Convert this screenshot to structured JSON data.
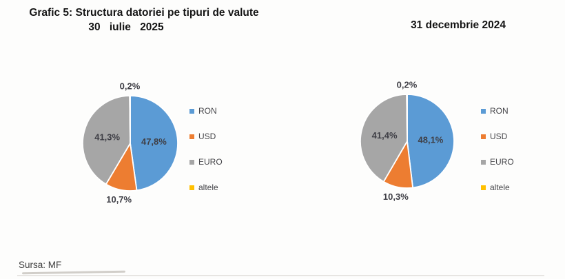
{
  "header": {
    "title": "Grafic 5: Structura datoriei pe tipuri de valute"
  },
  "chart_data": [
    {
      "type": "pie",
      "title": "30 iulie 2025",
      "categories": [
        "RON",
        "USD",
        "EURO",
        "altele"
      ],
      "values": [
        47.8,
        10.7,
        41.3,
        0.2
      ],
      "labels": [
        "47,8%",
        "10,7%",
        "41,3%",
        "0,2%"
      ],
      "colors": [
        "#5B9BD5",
        "#ED7D31",
        "#A6A6A6",
        "#FFC000"
      ],
      "legend_position": "right",
      "start_angle": 0
    },
    {
      "type": "pie",
      "title": "31 decembrie 2024",
      "categories": [
        "RON",
        "USD",
        "EURO",
        "altele"
      ],
      "values": [
        48.1,
        10.3,
        41.4,
        0.2
      ],
      "labels": [
        "48,1%",
        "10,3%",
        "41,4%",
        "0,2%"
      ],
      "colors": [
        "#5B9BD5",
        "#ED7D31",
        "#A6A6A6",
        "#FFC000"
      ],
      "legend_position": "right",
      "start_angle": 0
    }
  ],
  "footer": {
    "source": "Sursa: MF"
  }
}
